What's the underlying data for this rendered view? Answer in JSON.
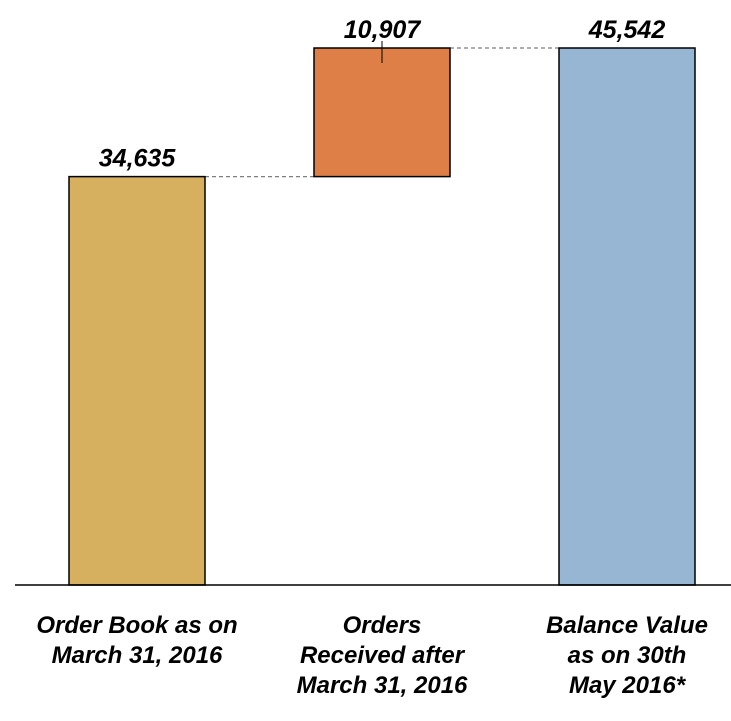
{
  "chart_data": {
    "type": "bar",
    "subtype": "waterfall",
    "title": "",
    "xlabel": "",
    "ylabel": "",
    "ylim": [
      0,
      50000
    ],
    "grid": false,
    "legend": "none",
    "categories": [
      [
        "Order Book as on",
        "March 31, 2016"
      ],
      [
        "Orders",
        "Received after",
        "March 31, 2016"
      ],
      [
        "Balance Value",
        "as on 30th",
        "May 2016*"
      ]
    ],
    "bars": [
      {
        "kind": "total",
        "base": 0,
        "value": 34635,
        "label": "34,635",
        "color": "#D6B05E"
      },
      {
        "kind": "increase",
        "base": 34635,
        "value": 10907,
        "label": "10,907",
        "color": "#DD7F47"
      },
      {
        "kind": "total",
        "base": 0,
        "value": 45542,
        "label": "45,542",
        "color": "#96B6D3"
      }
    ],
    "connector_color": "#7F7F7F"
  }
}
